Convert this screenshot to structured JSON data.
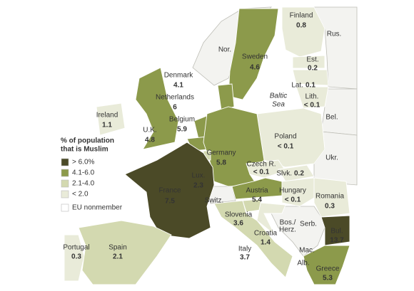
{
  "map": {
    "legend": {
      "title_lines": [
        "% of population",
        "that is Muslim"
      ],
      "items": [
        {
          "label": "> 6.0%",
          "color": "#4b4a27"
        },
        {
          "label": "4.1-6.0",
          "color": "#8c9a4b"
        },
        {
          "label": "2.1-4.0",
          "color": "#d3d9b0"
        },
        {
          "label": "< 2.0",
          "color": "#e9ebd9"
        },
        {
          "label": "EU nonmember",
          "color": "#ffffff"
        }
      ]
    },
    "countries": [
      {
        "name": "Finland",
        "value": 0.8,
        "color": "#e9ebd9"
      },
      {
        "name": "Sweden",
        "value": 4.6,
        "color": "#8c9a4b"
      },
      {
        "name": "Est.",
        "value": 0.2,
        "color": "#e9ebd9"
      },
      {
        "name": "Lat.",
        "value": 0.1,
        "color": "#e9ebd9"
      },
      {
        "name": "Lith.",
        "value": "< 0.1",
        "color": "#e9ebd9"
      },
      {
        "name": "Denmark",
        "value": 4.1,
        "color": "#8c9a4b"
      },
      {
        "name": "Netherlands",
        "value": 6.0,
        "color": "#8c9a4b"
      },
      {
        "name": "Belgium",
        "value": 5.9,
        "color": "#8c9a4b"
      },
      {
        "name": "Ireland",
        "value": 1.1,
        "color": "#e9ebd9"
      },
      {
        "name": "U.K.",
        "value": 4.8,
        "color": "#8c9a4b"
      },
      {
        "name": "Poland",
        "value": "< 0.1",
        "color": "#e9ebd9"
      },
      {
        "name": "Germany",
        "value": 5.8,
        "color": "#8c9a4b"
      },
      {
        "name": "Czech R.",
        "value": "< 0.1",
        "color": "#e9ebd9"
      },
      {
        "name": "Slvk.",
        "value": 0.2,
        "color": "#e9ebd9"
      },
      {
        "name": "Lux.",
        "value": 2.3,
        "color": "#d3d9b0"
      },
      {
        "name": "France",
        "value": 7.5,
        "color": "#4b4a27"
      },
      {
        "name": "Austria",
        "value": 5.4,
        "color": "#8c9a4b"
      },
      {
        "name": "Hungary",
        "value": "< 0.1",
        "color": "#e9ebd9"
      },
      {
        "name": "Romania",
        "value": 0.3,
        "color": "#e9ebd9"
      },
      {
        "name": "Slovenia",
        "value": 3.6,
        "color": "#d3d9b0"
      },
      {
        "name": "Croatia",
        "value": 1.4,
        "color": "#e9ebd9"
      },
      {
        "name": "Bul.",
        "value": 13.7,
        "color": "#4b4a27"
      },
      {
        "name": "Portugal",
        "value": 0.3,
        "color": "#e9ebd9"
      },
      {
        "name": "Spain",
        "value": 2.1,
        "color": "#d3d9b0"
      },
      {
        "name": "Italy",
        "value": 3.7,
        "color": "#d3d9b0"
      },
      {
        "name": "Greece",
        "value": 5.3,
        "color": "#8c9a4b"
      }
    ],
    "nonmember_labels": [
      "Nor.",
      "Rus.",
      "Bel.",
      "Ukr.",
      "Switz.",
      "Serb.",
      "Bos./",
      "Herz.",
      "Mac.",
      "Alb."
    ],
    "sea_labels": [
      "Baltic",
      "Sea"
    ]
  }
}
